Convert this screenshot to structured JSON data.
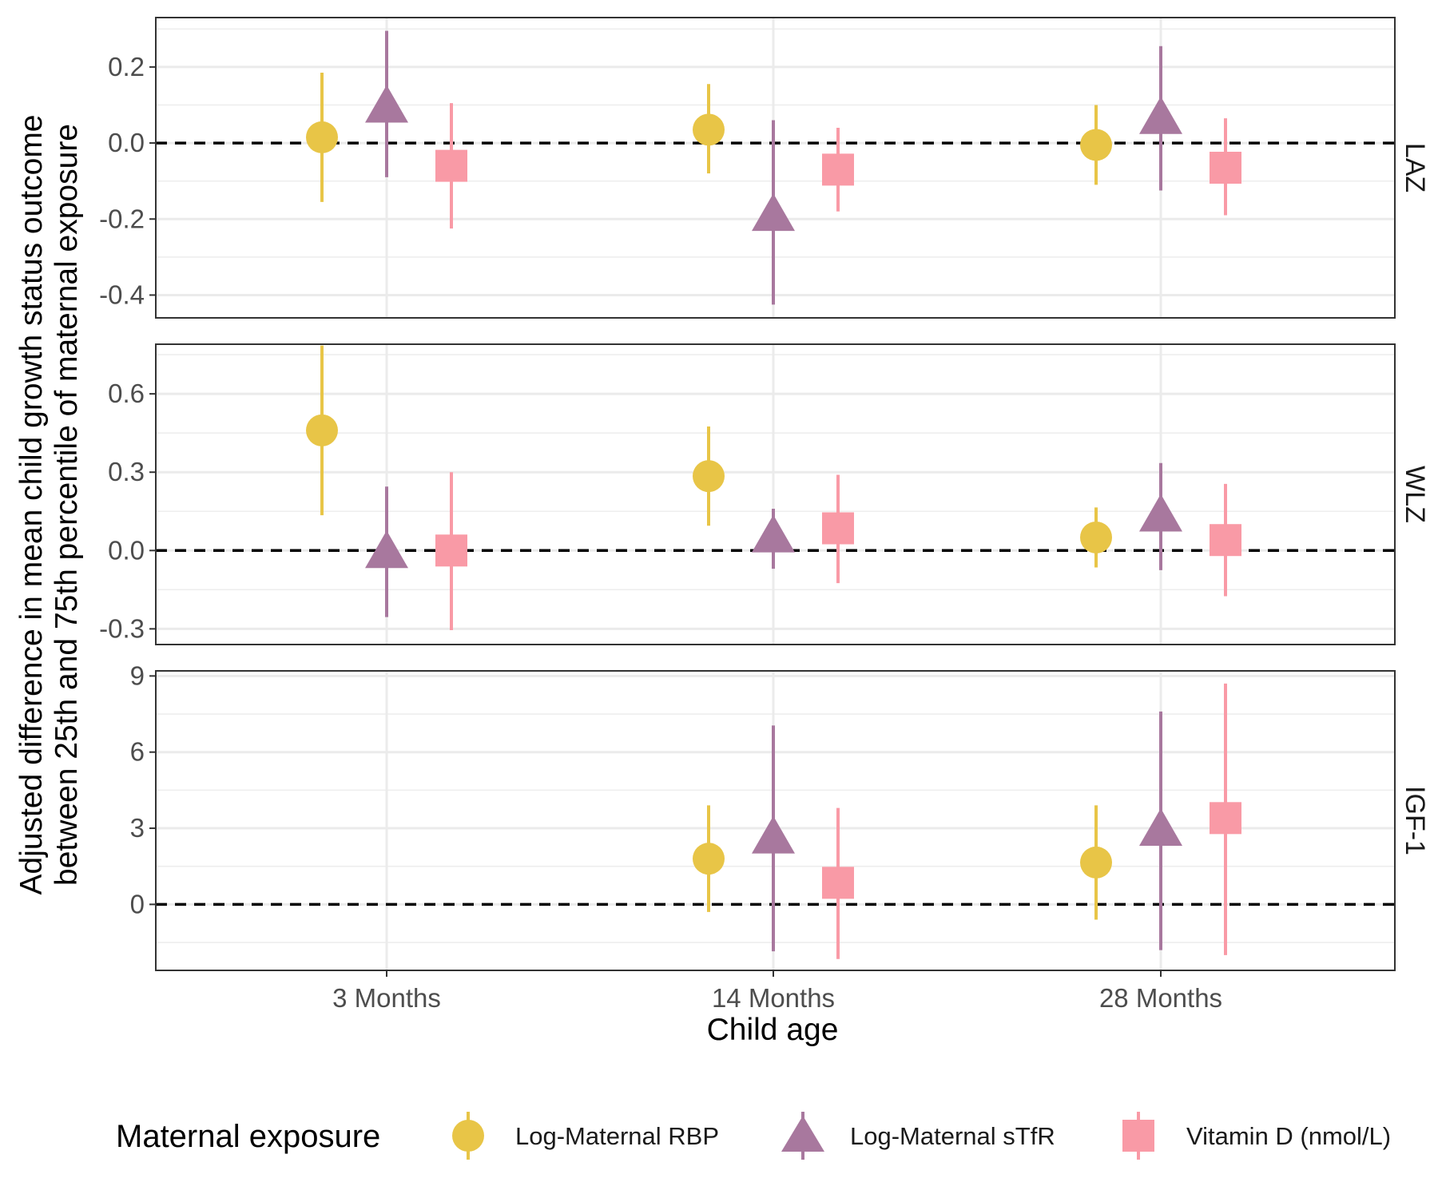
{
  "chart_data": {
    "type": "scatter",
    "subtype": "point-range faceted",
    "x_label": "Child age",
    "y_label_line1": "Adjusted difference in mean child growth status outcome",
    "y_label_line2": "between 25th and 75th percentile of maternal exposure",
    "categories": [
      "3 Months",
      "14 Months",
      "28 Months"
    ],
    "legend": {
      "title": "Maternal exposure",
      "position": "bottom"
    },
    "series": [
      {
        "name": "Log-Maternal RBP",
        "color": "#E8C547",
        "shape": "circle"
      },
      {
        "name": "Log-Maternal sTfR",
        "color": "#A8789E",
        "shape": "triangle"
      },
      {
        "name": "Vitamin D (nmol/L)",
        "color": "#F99AA6",
        "shape": "square"
      }
    ],
    "reference_line": 0,
    "grid": true,
    "panels": [
      {
        "label": "LAZ",
        "ylim": [
          -0.46,
          0.33
        ],
        "ticks": [
          0.2,
          0.0,
          -0.2,
          -0.4
        ],
        "tick_labels": [
          "0.2",
          "0.0",
          "-0.2",
          "-0.4"
        ],
        "minor_ticks": [
          0.3,
          0.1,
          -0.1,
          -0.3
        ],
        "points": [
          {
            "series": 0,
            "category": 0,
            "y": 0.015,
            "lo": -0.155,
            "hi": 0.185
          },
          {
            "series": 1,
            "category": 0,
            "y": 0.1,
            "lo": -0.09,
            "hi": 0.295
          },
          {
            "series": 2,
            "category": 0,
            "y": -0.06,
            "lo": -0.225,
            "hi": 0.105
          },
          {
            "series": 0,
            "category": 1,
            "y": 0.035,
            "lo": -0.08,
            "hi": 0.155
          },
          {
            "series": 1,
            "category": 1,
            "y": -0.185,
            "lo": -0.425,
            "hi": 0.06
          },
          {
            "series": 2,
            "category": 1,
            "y": -0.07,
            "lo": -0.18,
            "hi": 0.04
          },
          {
            "series": 0,
            "category": 2,
            "y": -0.005,
            "lo": -0.11,
            "hi": 0.1
          },
          {
            "series": 1,
            "category": 2,
            "y": 0.07,
            "lo": -0.125,
            "hi": 0.255
          },
          {
            "series": 2,
            "category": 2,
            "y": -0.065,
            "lo": -0.19,
            "hi": 0.065
          }
        ]
      },
      {
        "label": "WLZ",
        "ylim": [
          -0.36,
          0.79
        ],
        "ticks": [
          0.6,
          0.3,
          0.0,
          -0.3
        ],
        "tick_labels": [
          "0.6",
          "0.3",
          "0.0",
          "-0.3"
        ],
        "minor_ticks": [
          0.75,
          0.45,
          0.15,
          -0.15
        ],
        "points": [
          {
            "series": 0,
            "category": 0,
            "y": 0.46,
            "lo": 0.135,
            "hi": 0.785
          },
          {
            "series": 1,
            "category": 0,
            "y": 0.0,
            "lo": -0.255,
            "hi": 0.245
          },
          {
            "series": 2,
            "category": 0,
            "y": 0.0,
            "lo": -0.305,
            "hi": 0.3
          },
          {
            "series": 0,
            "category": 1,
            "y": 0.285,
            "lo": 0.095,
            "hi": 0.475
          },
          {
            "series": 1,
            "category": 1,
            "y": 0.06,
            "lo": -0.07,
            "hi": 0.16
          },
          {
            "series": 2,
            "category": 1,
            "y": 0.085,
            "lo": -0.125,
            "hi": 0.29
          },
          {
            "series": 0,
            "category": 2,
            "y": 0.05,
            "lo": -0.065,
            "hi": 0.165
          },
          {
            "series": 1,
            "category": 2,
            "y": 0.14,
            "lo": -0.075,
            "hi": 0.335
          },
          {
            "series": 2,
            "category": 2,
            "y": 0.04,
            "lo": -0.175,
            "hi": 0.255
          }
        ]
      },
      {
        "label": "IGF-1",
        "ylim": [
          -2.6,
          9.2
        ],
        "ticks": [
          9,
          6,
          3,
          0
        ],
        "tick_labels": [
          "9",
          "6",
          "3",
          "0"
        ],
        "minor_ticks": [
          7.5,
          4.5,
          1.5,
          -1.5
        ],
        "points": [
          {
            "series": 0,
            "category": 1,
            "y": 1.8,
            "lo": -0.3,
            "hi": 3.9
          },
          {
            "series": 1,
            "category": 1,
            "y": 2.7,
            "lo": -1.85,
            "hi": 7.05
          },
          {
            "series": 2,
            "category": 1,
            "y": 0.85,
            "lo": -2.15,
            "hi": 3.8
          },
          {
            "series": 0,
            "category": 2,
            "y": 1.65,
            "lo": -0.6,
            "hi": 3.9
          },
          {
            "series": 1,
            "category": 2,
            "y": 3.0,
            "lo": -1.8,
            "hi": 7.6
          },
          {
            "series": 2,
            "category": 2,
            "y": 3.4,
            "lo": -2.0,
            "hi": 8.7
          }
        ]
      }
    ]
  }
}
